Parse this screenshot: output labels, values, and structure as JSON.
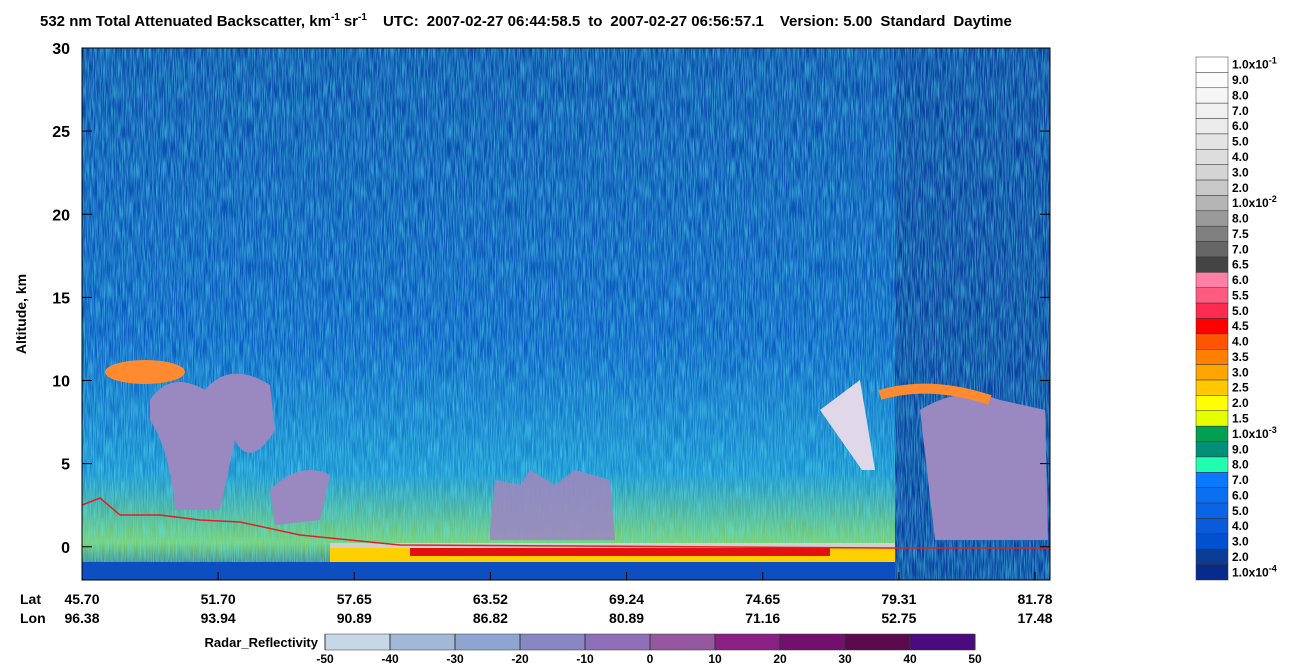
{
  "chart_data": {
    "type": "curtain",
    "title": {
      "main": "532 nm Total Attenuated Backscatter, km",
      "unit1_exp": "-1",
      "unit2": "sr",
      "unit2_exp": "-1",
      "utc_label": "UTC:",
      "start": "2007-02-27 06:44:58.5",
      "to": "to",
      "end": "2007-02-27 06:56:57.1",
      "version": "Version: 5.00",
      "product": "Standard",
      "daytime": "Daytime"
    },
    "ylabel": "Altitude, km",
    "ylim": [
      -2,
      30
    ],
    "yticks": [
      0,
      5,
      10,
      15,
      20,
      25,
      30
    ],
    "lat_label": "Lat",
    "lon_label": "Lon",
    "lat_ticks": [
      "45.70",
      "51.70",
      "57.65",
      "63.52",
      "69.24",
      "74.65",
      "79.31",
      "81.78"
    ],
    "lon_ticks": [
      "96.38",
      "93.94",
      "90.89",
      "86.82",
      "80.89",
      "71.16",
      "52.75",
      "17.48"
    ],
    "colorbar": [
      {
        "label": "1.0x10",
        "exp": "-1",
        "color": "#ffffff"
      },
      {
        "label": "9.0",
        "color": "#fbfbfb"
      },
      {
        "label": "8.0",
        "color": "#f6f6f6"
      },
      {
        "label": "7.0",
        "color": "#f0f0f0"
      },
      {
        "label": "6.0",
        "color": "#ebebeb"
      },
      {
        "label": "5.0",
        "color": "#e4e4e4"
      },
      {
        "label": "4.0",
        "color": "#dddddd"
      },
      {
        "label": "3.0",
        "color": "#d4d4d4"
      },
      {
        "label": "2.0",
        "color": "#c8c8c8"
      },
      {
        "label": "1.0x10",
        "exp": "-2",
        "color": "#b4b4b4"
      },
      {
        "label": "8.0",
        "color": "#9a9a9a"
      },
      {
        "label": "7.5",
        "color": "#808080"
      },
      {
        "label": "7.0",
        "color": "#666666"
      },
      {
        "label": "6.5",
        "color": "#444444"
      },
      {
        "label": "6.0",
        "color": "#ff7fa6"
      },
      {
        "label": "5.5",
        "color": "#ff5a80"
      },
      {
        "label": "5.0",
        "color": "#ff2a50"
      },
      {
        "label": "4.5",
        "color": "#ff0000"
      },
      {
        "label": "4.0",
        "color": "#ff5500"
      },
      {
        "label": "3.5",
        "color": "#ff8000"
      },
      {
        "label": "3.0",
        "color": "#ffa500"
      },
      {
        "label": "2.5",
        "color": "#ffc800"
      },
      {
        "label": "2.0",
        "color": "#ffff00"
      },
      {
        "label": "1.5",
        "color": "#e6ff00"
      },
      {
        "label": "1.0x10",
        "exp": "-3",
        "color": "#00a050"
      },
      {
        "label": "9.0",
        "color": "#00907a"
      },
      {
        "label": "8.0",
        "color": "#20ffb0"
      },
      {
        "label": "7.0",
        "color": "#0a78ff"
      },
      {
        "label": "6.0",
        "color": "#0a6ef0"
      },
      {
        "label": "5.0",
        "color": "#0a64e6"
      },
      {
        "label": "4.0",
        "color": "#0a5adc"
      },
      {
        "label": "3.0",
        "color": "#0050d2"
      },
      {
        "label": "2.0",
        "color": "#0a3c96"
      },
      {
        "label": "1.0x10",
        "exp": "-4",
        "color": "#082a8c"
      }
    ],
    "radar_label": "Radar_Reflectivity",
    "radar_ticks": [
      -50,
      -40,
      -30,
      -20,
      -10,
      0,
      10,
      20,
      30,
      40,
      50
    ],
    "radar_colors": [
      "#c7d7e8",
      "#a2b8d6",
      "#8ea5d0",
      "#8a86c4",
      "#8f6fb8",
      "#95589e",
      "#8a1f84",
      "#72106e",
      "#5c0a4e",
      "#4a0a80"
    ]
  }
}
